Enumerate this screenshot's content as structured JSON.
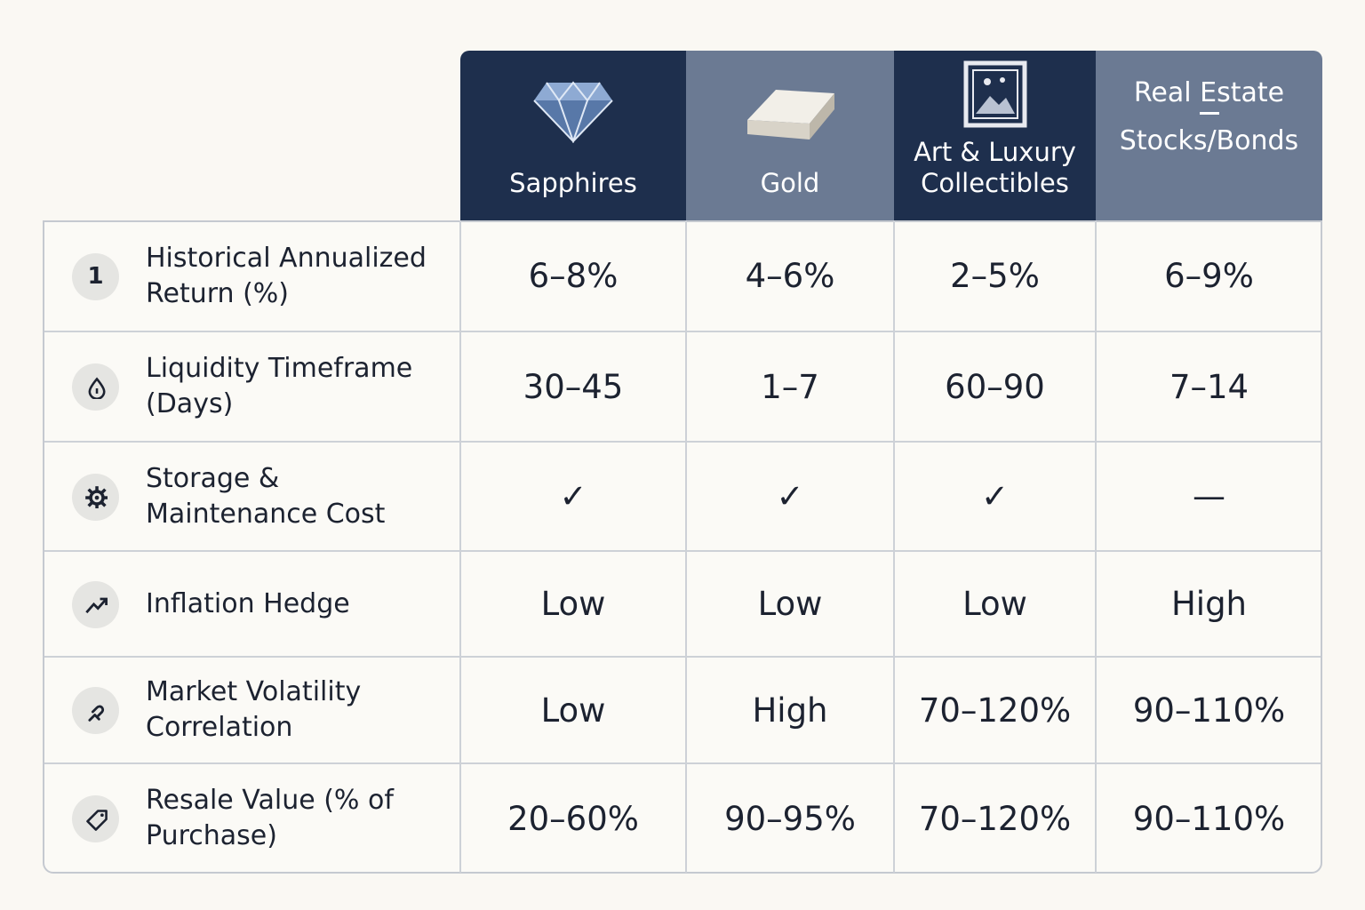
{
  "table": {
    "columns": [
      {
        "label": "Sapphires"
      },
      {
        "label": "Gold"
      },
      {
        "label": "Art & Luxury Collectibles"
      },
      {
        "label": "Real Estate",
        "sublabel": "Stocks/Bonds"
      }
    ],
    "rows": [
      {
        "icon_text": "1",
        "label": "Historical Annualized Return (%)",
        "cells": [
          "6–8%",
          "4–6%",
          "2–5%",
          "6–9%"
        ]
      },
      {
        "label": "Liquidity Timeframe (Days)",
        "cells": [
          "30–45",
          "1–7",
          "60–90",
          "7–14"
        ]
      },
      {
        "label": "Storage & Maintenance Cost",
        "cells": [
          "✓",
          "✓",
          "✓",
          "—"
        ]
      },
      {
        "label": "Inflation Hedge",
        "cells": [
          "Low",
          "Low",
          "Low",
          "High"
        ]
      },
      {
        "label": "Market Volatility Correlation",
        "cells": [
          "Low",
          "High",
          "70–120%",
          "90–110%"
        ]
      },
      {
        "label": "Resale Value (% of Purchase)",
        "cells": [
          "20–60%",
          "90–95%",
          "70–120%",
          "90–110%"
        ]
      }
    ]
  }
}
